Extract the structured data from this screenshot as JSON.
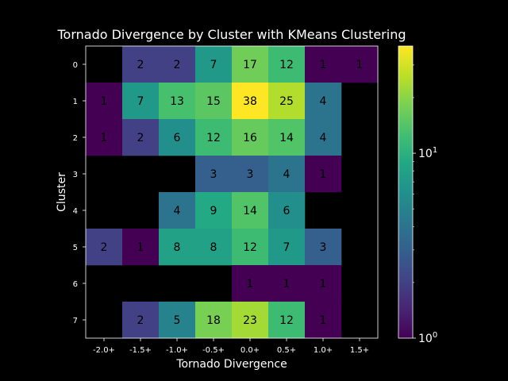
{
  "chart_data": {
    "type": "heatmap",
    "title": "Tornado Divergence by Cluster with KMeans Clustering",
    "xlabel": "Tornado Divergence",
    "ylabel": "Cluster",
    "x_categories": [
      "-2.0+",
      "-1.5+",
      "-1.0+",
      "-0.5+",
      "0.0+",
      "0.5+",
      "1.0+",
      "1.5+"
    ],
    "y_categories": [
      "0",
      "1",
      "2",
      "3",
      "4",
      "5",
      "6",
      "7"
    ],
    "values": [
      [
        null,
        2,
        2,
        7,
        17,
        12,
        1,
        1
      ],
      [
        1,
        7,
        13,
        15,
        38,
        25,
        4,
        null
      ],
      [
        1,
        2,
        6,
        12,
        16,
        14,
        4,
        null
      ],
      [
        null,
        null,
        null,
        3,
        3,
        4,
        1,
        null
      ],
      [
        null,
        null,
        4,
        9,
        14,
        6,
        null,
        null
      ],
      [
        2,
        1,
        8,
        8,
        12,
        7,
        3,
        null
      ],
      [
        null,
        null,
        null,
        null,
        1,
        1,
        1,
        null
      ],
      [
        null,
        2,
        5,
        18,
        23,
        12,
        1,
        null
      ]
    ],
    "colorbar": {
      "scale": "log",
      "colormap": "viridis",
      "range": [
        1,
        38
      ],
      "tick_labels": [
        {
          "base": "10",
          "exp": "0"
        },
        {
          "base": "10",
          "exp": "1"
        }
      ]
    },
    "background": "#000000",
    "text_color": "#ffffff",
    "cell_text_color": "#000000"
  }
}
